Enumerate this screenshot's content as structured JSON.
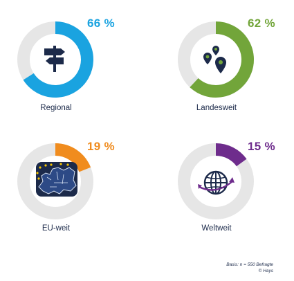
{
  "chart_data": [
    {
      "type": "pie",
      "label": "Regional",
      "value": 66,
      "value_text": "66 %",
      "color": "#1aa3e0",
      "icon": "signpost-icon"
    },
    {
      "type": "pie",
      "label": "Landesweit",
      "value": 62,
      "value_text": "62 %",
      "color": "#72a53a",
      "icon": "map-pins-icon"
    },
    {
      "type": "pie",
      "label": "EU-weit",
      "value": 19,
      "value_text": "19 %",
      "color": "#f08c1e",
      "icon": "europe-map-icon"
    },
    {
      "type": "pie",
      "label": "Weltweit",
      "value": 15,
      "value_text": "15 %",
      "color": "#6e2c8c",
      "icon": "globe-icon"
    }
  ],
  "track_color": "#e6e6e6",
  "footer": {
    "basis": "Basis: n = 550 Befragte",
    "source": "© Hays"
  }
}
